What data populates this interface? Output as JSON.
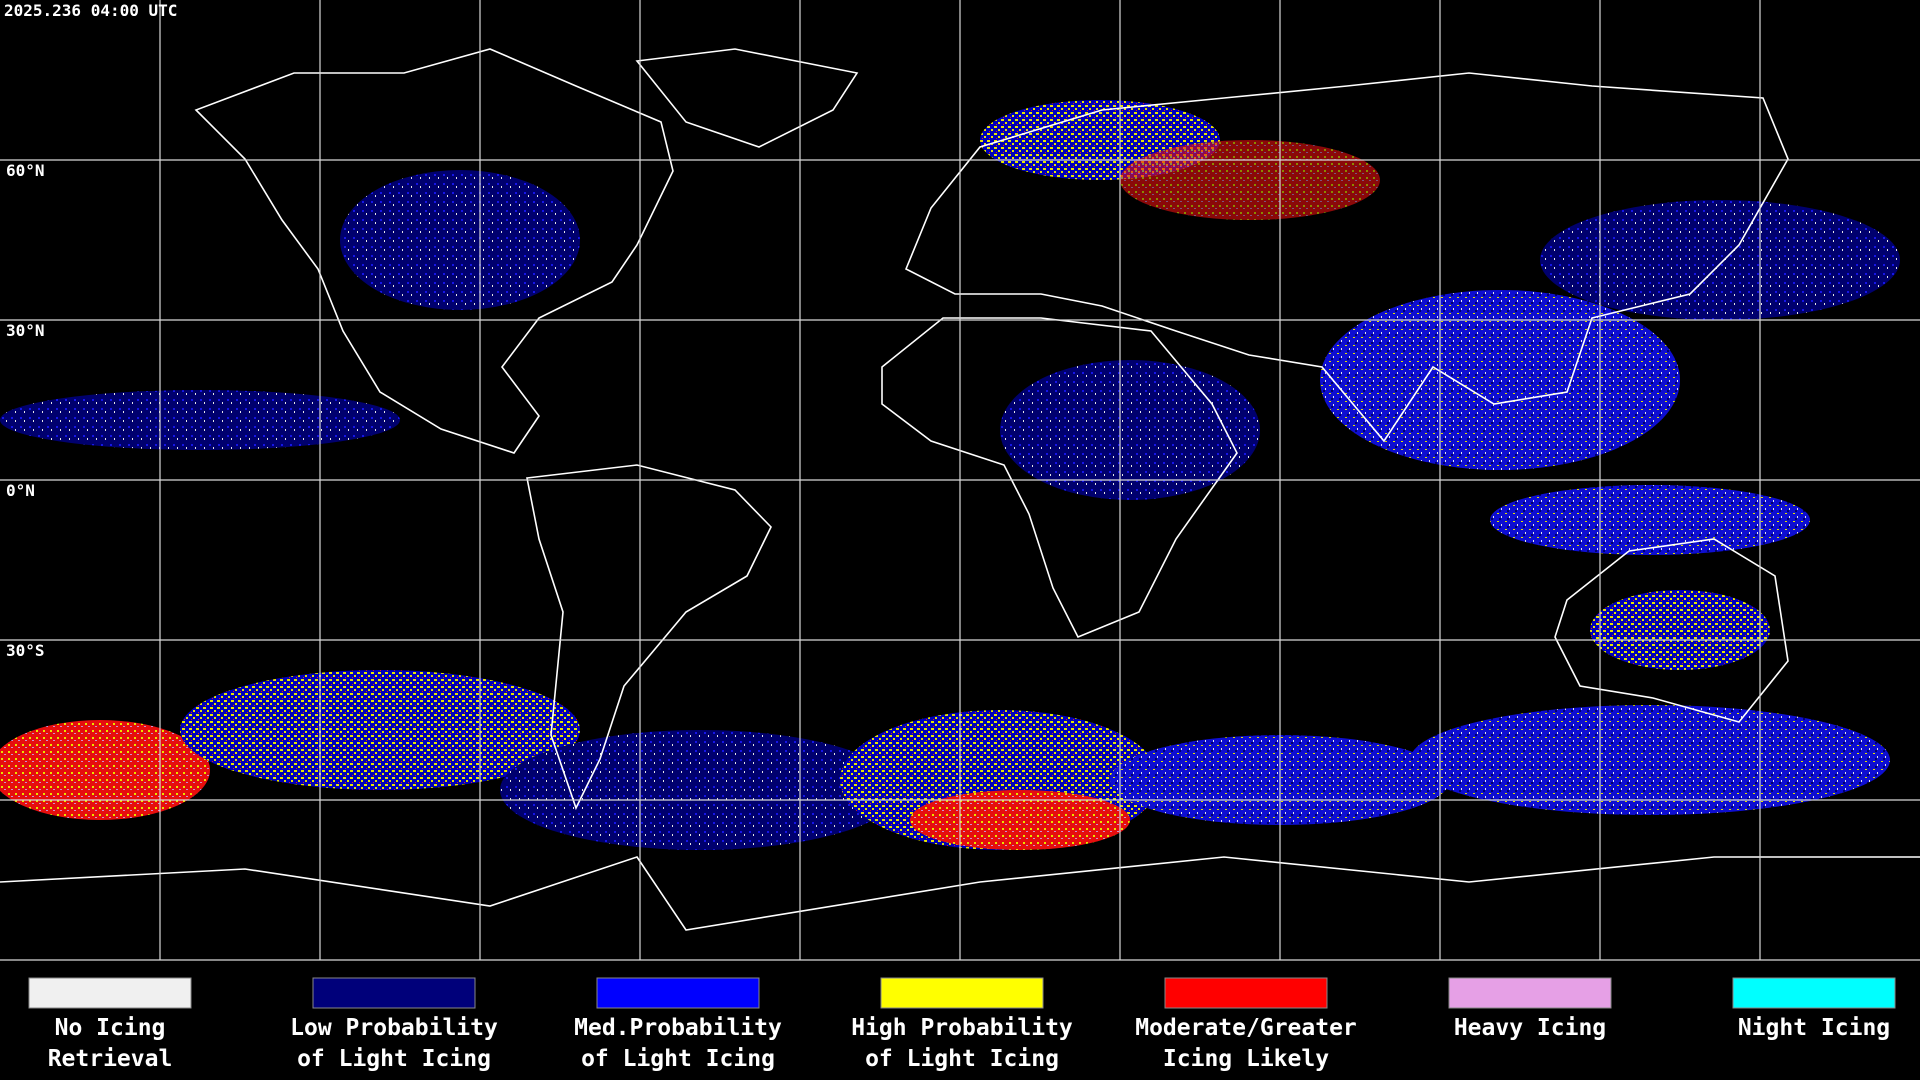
{
  "header": {
    "timestamp": "2025.236 04:00 UTC"
  },
  "latitude_labels": [
    "60°N",
    "30°N",
    "0°N",
    "30°S"
  ],
  "legend": [
    {
      "color": "#f0f0f0",
      "lines": [
        "No Icing",
        "Retrieval"
      ]
    },
    {
      "color": "#00007a",
      "lines": [
        "Low Probability",
        "of Light Icing"
      ]
    },
    {
      "color": "#0000ff",
      "lines": [
        "Med.Probability",
        "of Light Icing"
      ]
    },
    {
      "color": "#ffff00",
      "lines": [
        "High Probability",
        "of Light Icing"
      ]
    },
    {
      "color": "#ff0000",
      "lines": [
        "Moderate/Greater",
        "Icing Likely"
      ]
    },
    {
      "color": "#e6a0e6",
      "lines": [
        "Heavy Icing"
      ]
    },
    {
      "color": "#00ffff",
      "lines": [
        "Night Icing"
      ]
    }
  ]
}
